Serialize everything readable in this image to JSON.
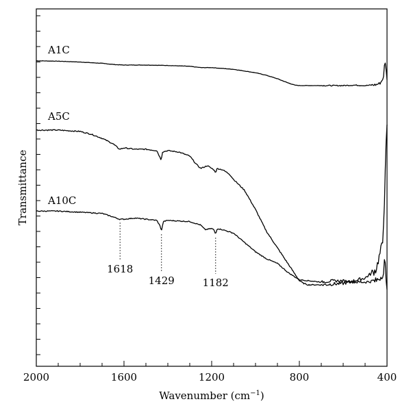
{
  "chart_data": {
    "type": "line",
    "xlabel": "Wavenumber (cm",
    "xlabel_sup": "−1",
    "xlabel_close": ")",
    "ylabel": "Transmittance",
    "xlim": [
      2000,
      400
    ],
    "x_reversed": true,
    "xticks": [
      2000,
      1600,
      1200,
      800,
      400
    ],
    "xtick_labels": [
      "2000",
      "1600",
      "1200",
      "800",
      "400"
    ],
    "y_tick_labels_shown": false,
    "grid": false,
    "series": [
      {
        "name": "A1C",
        "x": [
          2000,
          1900,
          1800,
          1700,
          1640,
          1600,
          1500,
          1400,
          1300,
          1250,
          1200,
          1150,
          1100,
          1000,
          950,
          900,
          850,
          820,
          800,
          750,
          700,
          650,
          600,
          550,
          500,
          450,
          430,
          415,
          410,
          405,
          400
        ],
        "y": [
          0.81,
          0.805,
          0.795,
          0.78,
          0.765,
          0.76,
          0.76,
          0.755,
          0.745,
          0.73,
          0.73,
          0.72,
          0.71,
          0.67,
          0.64,
          0.6,
          0.55,
          0.525,
          0.52,
          0.52,
          0.52,
          0.52,
          0.52,
          0.525,
          0.52,
          0.53,
          0.55,
          0.62,
          0.84,
          0.72,
          0.6
        ]
      },
      {
        "name": "A5C",
        "x": [
          2000,
          1900,
          1800,
          1750,
          1700,
          1650,
          1620,
          1600,
          1550,
          1500,
          1450,
          1430,
          1425,
          1400,
          1350,
          1300,
          1270,
          1250,
          1220,
          1190,
          1182,
          1175,
          1150,
          1120,
          1100,
          1050,
          1000,
          950,
          900,
          850,
          800,
          780,
          760,
          700,
          600,
          500,
          450,
          420,
          410,
          405,
          400
        ],
        "y": [
          0.57,
          0.57,
          0.565,
          0.555,
          0.54,
          0.52,
          0.5,
          0.505,
          0.5,
          0.5,
          0.495,
          0.46,
          0.49,
          0.495,
          0.49,
          0.475,
          0.445,
          0.43,
          0.44,
          0.425,
          0.415,
          0.43,
          0.425,
          0.41,
          0.39,
          0.35,
          0.28,
          0.2,
          0.14,
          0.08,
          0.02,
          0.01,
          0.005,
          0.005,
          0.01,
          0.03,
          0.06,
          0.16,
          0.35,
          0.5,
          0.58
        ]
      },
      {
        "name": "A10C",
        "x": [
          2000,
          1900,
          1800,
          1700,
          1650,
          1620,
          1600,
          1550,
          1500,
          1450,
          1435,
          1429,
          1420,
          1400,
          1300,
          1250,
          1230,
          1200,
          1190,
          1182,
          1175,
          1150,
          1100,
          1050,
          1000,
          950,
          900,
          850,
          800,
          750,
          700,
          650,
          600,
          550,
          500,
          450,
          430,
          415,
          410,
          405,
          400
        ],
        "y": [
          0.305,
          0.305,
          0.3,
          0.295,
          0.28,
          0.27,
          0.27,
          0.275,
          0.27,
          0.265,
          0.24,
          0.22,
          0.26,
          0.265,
          0.26,
          0.245,
          0.225,
          0.23,
          0.225,
          0.205,
          0.23,
          0.225,
          0.21,
          0.17,
          0.13,
          0.1,
          0.08,
          0.04,
          0.01,
          0.005,
          0.0,
          0.005,
          0.005,
          0.0,
          0.0,
          0.005,
          0.02,
          0.04,
          0.12,
          0.0,
          -0.02
        ]
      }
    ],
    "annotations": [
      {
        "x": 1618,
        "label": "1618",
        "series": "A10C"
      },
      {
        "x": 1429,
        "label": "1429",
        "series": "A10C"
      },
      {
        "x": 1182,
        "label": "1182",
        "series": "A10C"
      }
    ]
  }
}
